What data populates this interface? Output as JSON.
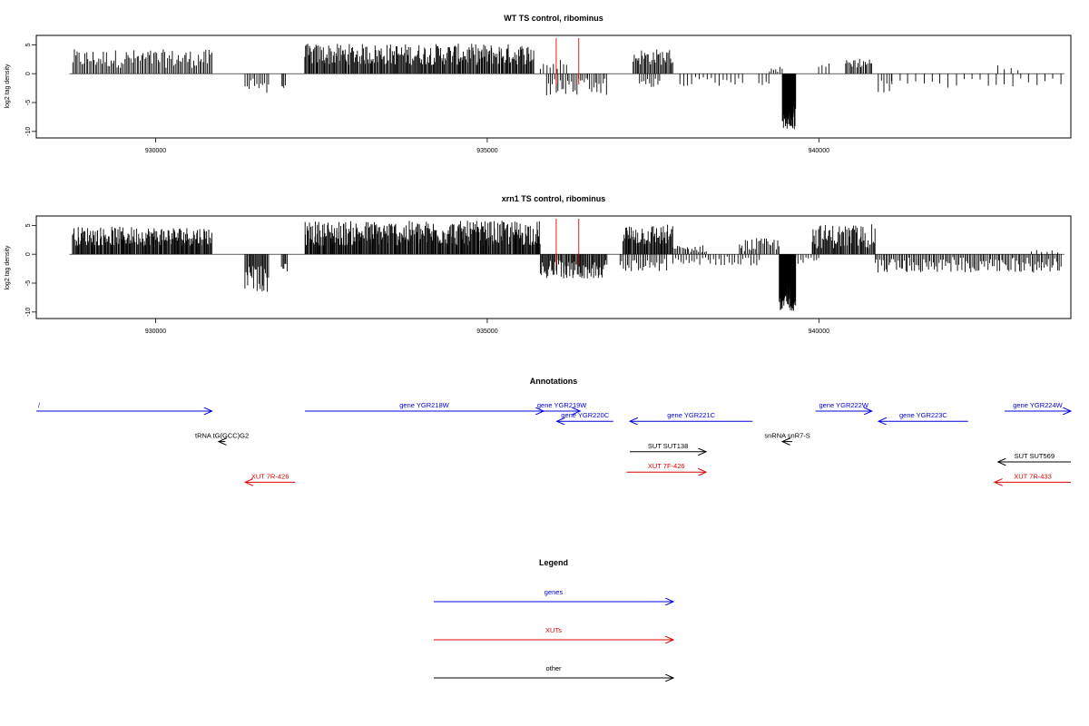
{
  "chart_data": [
    {
      "type": "bar",
      "title": "WT TS control, ribominus",
      "ylabel": "log2 tag density",
      "xlim": [
        928200,
        943800
      ],
      "ylim": [
        -10.5,
        6
      ],
      "x_ticks": [
        930000,
        935000,
        940000
      ],
      "x_tick_labels": [
        "930000",
        "935000",
        "940000"
      ],
      "y_ticks": [
        5,
        0,
        -5,
        -10
      ],
      "y_tick_labels": [
        "5",
        "0",
        "-5",
        "-10"
      ],
      "baseline": {
        "from": 928700,
        "to": 943700
      },
      "markers": [
        936040,
        936380
      ],
      "marker_color": "#dd0000",
      "bar_color": "#000000",
      "segments": [
        {
          "from": 928750,
          "to": 930850,
          "sign": 1,
          "min": 1.0,
          "max": 4.2,
          "density": 0.6
        },
        {
          "from": 931350,
          "to": 931700,
          "sign": -1,
          "min": 0.8,
          "max": 3.5,
          "density": 0.5
        },
        {
          "from": 931900,
          "to": 931950,
          "sign": -1,
          "min": 2.0,
          "max": 2.5,
          "density": 1.0
        },
        {
          "from": 932250,
          "to": 935700,
          "sign": 1,
          "min": 1.5,
          "max": 5.2,
          "density": 1.0
        },
        {
          "from": 935800,
          "to": 936200,
          "sign": 1,
          "min": 0.5,
          "max": 2.5,
          "density": 0.3
        },
        {
          "from": 935900,
          "to": 936800,
          "sign": -1,
          "min": 0.8,
          "max": 4.0,
          "density": 0.5
        },
        {
          "from": 937200,
          "to": 937800,
          "sign": 1,
          "min": 1.5,
          "max": 4.3,
          "density": 0.8
        },
        {
          "from": 937300,
          "to": 937600,
          "sign": -1,
          "min": 0.8,
          "max": 2.5,
          "density": 0.5
        },
        {
          "from": 937900,
          "to": 938850,
          "sign": -1,
          "min": 0.5,
          "max": 2.2,
          "density": 0.25
        },
        {
          "from": 939100,
          "to": 939250,
          "sign": -1,
          "min": 0.5,
          "max": 2.0,
          "density": 0.4
        },
        {
          "from": 939250,
          "to": 939450,
          "sign": 1,
          "min": 0.3,
          "max": 1.2,
          "density": 0.5
        },
        {
          "from": 939450,
          "to": 939650,
          "sign": -1,
          "min": 5.0,
          "max": 9.8,
          "density": 4.0
        },
        {
          "from": 940000,
          "to": 940150,
          "sign": 1,
          "min": 1.0,
          "max": 1.8,
          "density": 0.4
        },
        {
          "from": 940400,
          "to": 940800,
          "sign": 1,
          "min": 1.0,
          "max": 2.8,
          "density": 0.7
        },
        {
          "from": 940900,
          "to": 941100,
          "sign": -1,
          "min": 1.0,
          "max": 3.5,
          "density": 0.4
        },
        {
          "from": 941100,
          "to": 943650,
          "sign": -1,
          "min": 0.8,
          "max": 2.5,
          "density": 0.12
        },
        {
          "from": 942700,
          "to": 943000,
          "sign": 1,
          "min": 0.5,
          "max": 1.5,
          "density": 0.2
        }
      ]
    },
    {
      "type": "bar",
      "title": "xrn1 TS control, ribominus",
      "ylabel": "log2 tag density",
      "xlim": [
        928200,
        943800
      ],
      "ylim": [
        -10.5,
        6
      ],
      "x_ticks": [
        930000,
        935000,
        940000
      ],
      "x_tick_labels": [
        "930000",
        "935000",
        "940000"
      ],
      "y_ticks": [
        5,
        0,
        -5,
        -10
      ],
      "y_tick_labels": [
        "5",
        "0",
        "-5",
        "-10"
      ],
      "baseline": {
        "from": 928700,
        "to": 943700
      },
      "markers": [
        936040,
        936380
      ],
      "marker_color": "#dd0000",
      "bar_color": "#000000",
      "segments": [
        {
          "from": 928750,
          "to": 930850,
          "sign": 1,
          "min": 1.5,
          "max": 4.8,
          "density": 1.2
        },
        {
          "from": 931350,
          "to": 931700,
          "sign": -1,
          "min": 2.0,
          "max": 6.5,
          "density": 1.0
        },
        {
          "from": 931900,
          "to": 931980,
          "sign": -1,
          "min": 1.5,
          "max": 3.0,
          "density": 1.0
        },
        {
          "from": 932250,
          "to": 935800,
          "sign": 1,
          "min": 1.5,
          "max": 5.8,
          "density": 1.3
        },
        {
          "from": 935800,
          "to": 936800,
          "sign": -1,
          "min": 1.0,
          "max": 4.2,
          "density": 1.0
        },
        {
          "from": 937050,
          "to": 937800,
          "sign": 1,
          "min": 1.5,
          "max": 5.2,
          "density": 1.2
        },
        {
          "from": 937000,
          "to": 937700,
          "sign": -1,
          "min": 0.8,
          "max": 3.0,
          "density": 0.5
        },
        {
          "from": 937800,
          "to": 938300,
          "sign": 1,
          "min": 0.3,
          "max": 1.6,
          "density": 0.6
        },
        {
          "from": 937800,
          "to": 939100,
          "sign": -1,
          "min": 0.4,
          "max": 2.0,
          "density": 0.35
        },
        {
          "from": 938800,
          "to": 939400,
          "sign": 1,
          "min": 0.5,
          "max": 2.8,
          "density": 0.6
        },
        {
          "from": 939400,
          "to": 939650,
          "sign": -1,
          "min": 5.5,
          "max": 9.8,
          "density": 4.0
        },
        {
          "from": 939650,
          "to": 940000,
          "sign": -1,
          "min": 0.5,
          "max": 1.8,
          "density": 0.4
        },
        {
          "from": 939900,
          "to": 940850,
          "sign": 1,
          "min": 1.0,
          "max": 5.2,
          "density": 1.0
        },
        {
          "from": 940850,
          "to": 943650,
          "sign": -1,
          "min": 0.5,
          "max": 3.2,
          "density": 0.6
        },
        {
          "from": 943200,
          "to": 943600,
          "sign": 1,
          "min": 0.3,
          "max": 0.8,
          "density": 0.2
        }
      ]
    }
  ],
  "annotations": {
    "title": "Annotations",
    "features": [
      {
        "label": "/",
        "from": 928200,
        "to": 930850,
        "strand": "+",
        "color": "#0000dd",
        "row": 0
      },
      {
        "label": "gene YGR218W",
        "from": 932250,
        "to": 935850,
        "strand": "+",
        "color": "#0000dd",
        "row": 0
      },
      {
        "label": "gene YGR219W",
        "from": 935850,
        "to": 936400,
        "strand": "+",
        "color": "#0000dd",
        "row": 0
      },
      {
        "label": "gene YGR220C",
        "from": 936050,
        "to": 936900,
        "strand": "-",
        "color": "#0000dd",
        "row": 1
      },
      {
        "label": "gene YGR221C",
        "from": 937150,
        "to": 939000,
        "strand": "-",
        "color": "#0000dd",
        "row": 1
      },
      {
        "label": "gene YGR222W",
        "from": 939950,
        "to": 940800,
        "strand": "+",
        "color": "#0000dd",
        "row": 0
      },
      {
        "label": "gene YGR223C",
        "from": 940900,
        "to": 942250,
        "strand": "-",
        "color": "#0000dd",
        "row": 1
      },
      {
        "label": "gene YGR224W",
        "from": 942800,
        "to": 943800,
        "strand": "+",
        "color": "#0000dd",
        "row": 0
      },
      {
        "label": "tRNA tG(GCC)G2",
        "from": 930950,
        "to": 931050,
        "strand": "-",
        "color": "#000000",
        "row": 3
      },
      {
        "label": "snRNA snR7-S",
        "from": 939450,
        "to": 939600,
        "strand": "-",
        "color": "#000000",
        "row": 3
      },
      {
        "label": "SUT SUT138",
        "from": 937150,
        "to": 938300,
        "strand": "+",
        "color": "#000000",
        "row": 4
      },
      {
        "label": "SUT SUT569",
        "from": 942700,
        "to": 943800,
        "strand": "-",
        "color": "#000000",
        "row": 5
      },
      {
        "label": "XUT 7R-426",
        "from": 931350,
        "to": 932100,
        "strand": "-",
        "color": "#dd0000",
        "row": 7
      },
      {
        "label": "XUT 7F-426",
        "from": 937100,
        "to": 938300,
        "strand": "+",
        "color": "#dd0000",
        "row": 6
      },
      {
        "label": "XUT 7R-433",
        "from": 942650,
        "to": 943800,
        "strand": "-",
        "color": "#dd0000",
        "row": 7
      }
    ]
  },
  "legend": {
    "title": "Legend",
    "items": [
      {
        "label": "genes",
        "color": "#0000dd"
      },
      {
        "label": "XUTs",
        "color": "#dd0000"
      },
      {
        "label": "other",
        "color": "#000000"
      }
    ]
  }
}
